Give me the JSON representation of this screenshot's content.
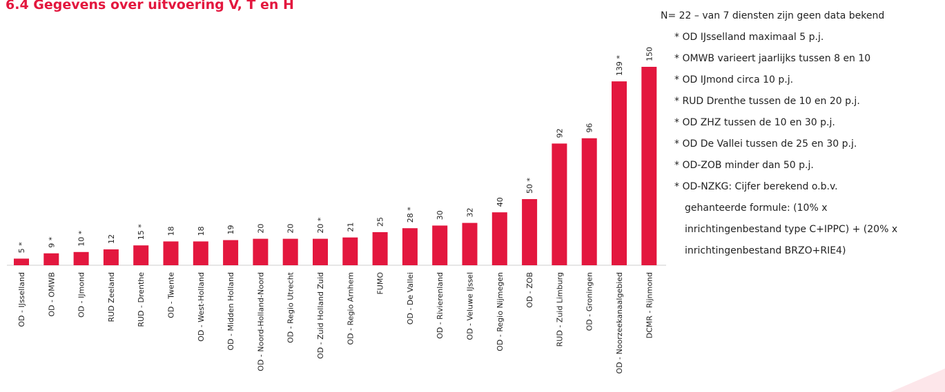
{
  "chart_data": {
    "type": "bar",
    "title": "6.4 Gegevens over uitvoering V, T en H",
    "categories": [
      "OD - IJsselland",
      "OD - OMWB",
      "OD - IJmond",
      "RUD Zeeland",
      "RUD - Drenthe",
      "OD - Twente",
      "OD - West-Holland",
      "OD - Midden Holland",
      "OD - Noord-Holland-Noord",
      "OD - Regio Utrecht",
      "OD - Zuid Holland Zuid",
      "OD - Regio Arnhem",
      "FUMO",
      "OD - De Vallei",
      "OD - Rivierenland",
      "OD - Veluwe IJssel",
      "OD - Regio Nijmegen",
      "OD - ZOB",
      "RUD - Zuid Limburg",
      "OD - Groningen",
      "OD - Noorzeekanaalgebied",
      "DCMR - Rijnmond"
    ],
    "values": [
      5,
      9,
      10,
      12,
      15,
      18,
      18,
      19,
      20,
      20,
      20,
      21,
      25,
      28,
      30,
      32,
      40,
      50,
      92,
      96,
      139,
      150
    ],
    "value_labels": [
      "5 *",
      "9 *",
      "10 *",
      "12",
      "15 *",
      "18",
      "18",
      "19",
      "20",
      "20",
      "20 *",
      "21",
      "25",
      "28 *",
      "30",
      "32",
      "40",
      "50 *",
      "92",
      "96",
      "139 *",
      "150"
    ],
    "color": "#e3173e",
    "notes": [
      [
        "N= 22 – van 7 diensten zijn geen data bekend"
      ],
      [
        "* OD IJsselland maximaal 5 p.j."
      ],
      [
        "* OMWB varieert jaarlijks tussen 8 en 10"
      ],
      [
        "* OD IJmond circa 10 p.j."
      ],
      [
        "* RUD Drenthe tussen de 10 en 20 p.j."
      ],
      [
        "* OD ZHZ tussen de 10 en 30 p.j."
      ],
      [
        "* OD De Vallei tussen de 25 en 30 p.j."
      ],
      [
        "* OD-ZOB minder dan 50 p.j."
      ],
      [
        "* OD-NZKG: Cijfer berekend o.b.v.",
        "gehanteerde formule: (10% x",
        "inrichtingenbestand type C+IPPC) + (20% x",
        "inrichtingenbestand BRZO+RIE4)"
      ]
    ]
  }
}
